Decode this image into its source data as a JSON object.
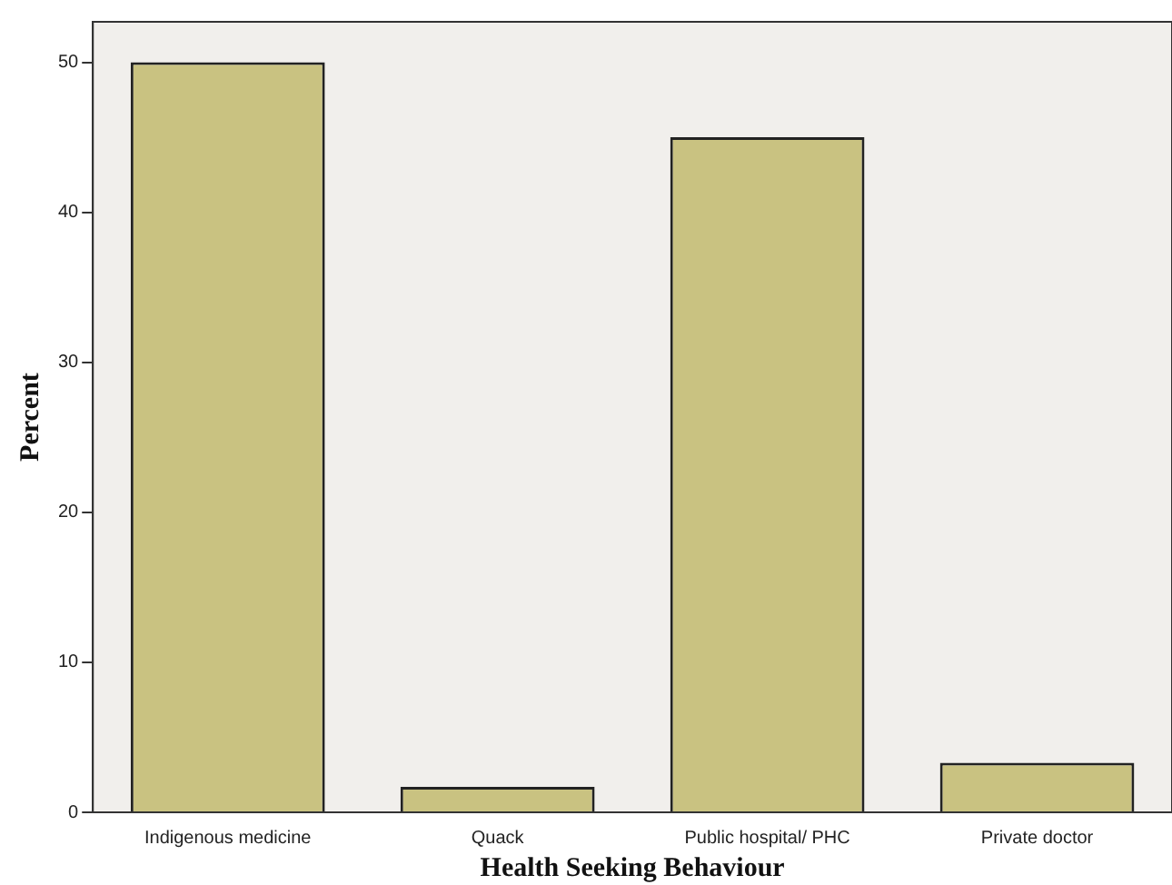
{
  "chart_data": {
    "type": "bar",
    "xlabel": "Health Seeking Behaviour",
    "ylabel": "Percent",
    "categories": [
      "Indigenous medicine",
      "Quack",
      "Public hospital/ PHC",
      "Private doctor"
    ],
    "values": [
      50,
      1.7,
      45,
      3.3
    ],
    "color": "#c9c281",
    "ylim": [
      0,
      52.7
    ],
    "yticks": [
      0,
      10,
      20,
      30,
      40,
      50
    ],
    "grid": false,
    "legend": false
  }
}
